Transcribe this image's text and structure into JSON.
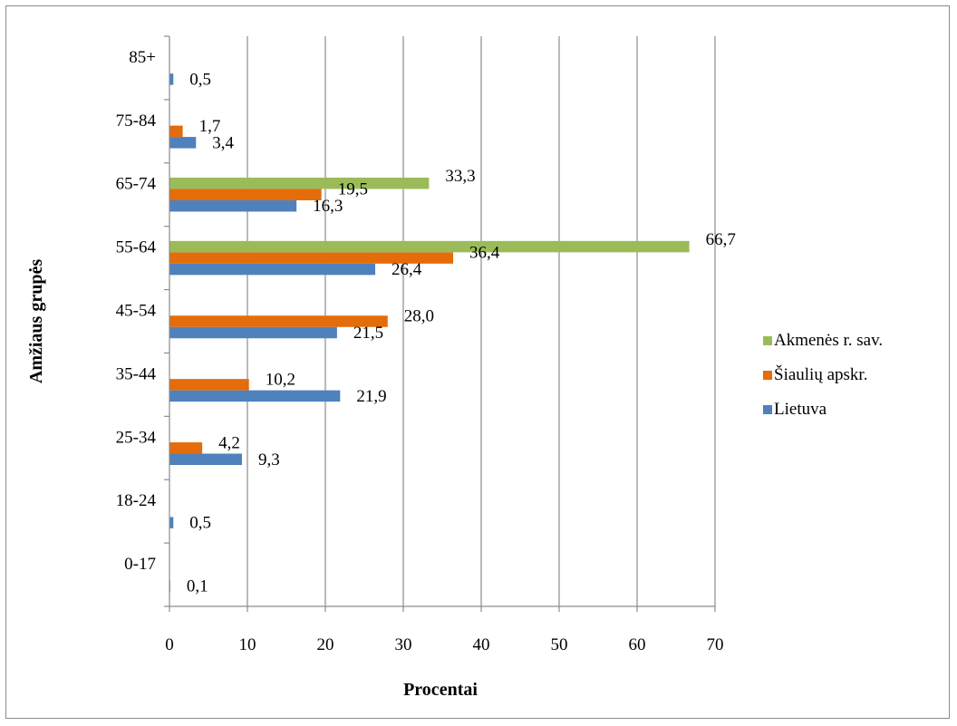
{
  "chart_data": {
    "type": "bar",
    "orientation": "horizontal",
    "categories": [
      "0-17",
      "18-24",
      "25-34",
      "35-44",
      "45-54",
      "55-64",
      "65-74",
      "75-84",
      "85+"
    ],
    "series": [
      {
        "name": "Lietuva",
        "color": "#4f81bd",
        "values": [
          0.1,
          0.5,
          9.3,
          21.9,
          21.5,
          26.4,
          16.3,
          3.4,
          0.5
        ],
        "labels": [
          "0,1",
          "0,5",
          "9,3",
          "21,9",
          "21,5",
          "26,4",
          "16,3",
          "3,4",
          "0,5"
        ]
      },
      {
        "name": "Šiaulių apskr.",
        "color": "#e46c0a",
        "values": [
          null,
          null,
          4.2,
          10.2,
          28.0,
          36.4,
          19.5,
          1.7,
          null
        ],
        "labels": [
          null,
          null,
          "4,2",
          "10,2",
          "28,0",
          "36,4",
          "19,5",
          "1,7",
          null
        ]
      },
      {
        "name": "Akmenės r. sav.",
        "color": "#9bbb59",
        "values": [
          null,
          null,
          null,
          null,
          null,
          66.7,
          33.3,
          null,
          null
        ],
        "labels": [
          null,
          null,
          null,
          null,
          null,
          "66,7",
          "33,3",
          null,
          null
        ]
      }
    ],
    "xlabel": "Procentai",
    "ylabel": "Amžiaus grupės",
    "xlim": [
      0,
      70
    ],
    "xticks": [
      0,
      10,
      20,
      30,
      40,
      50,
      60,
      70
    ],
    "grid": "vertical",
    "legend": "right"
  }
}
